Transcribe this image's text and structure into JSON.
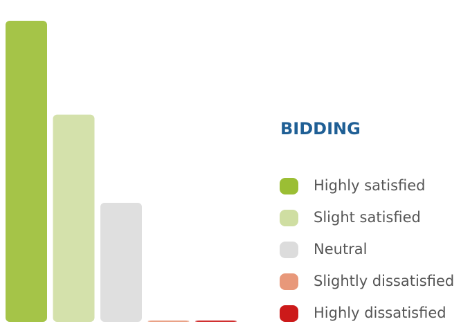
{
  "chart_data": {
    "type": "bar",
    "title": "BIDDING",
    "categories": [
      "Highly satisfied",
      "Slight satisfied",
      "Neutral",
      "Slightly dissatisfied",
      "Highly dissatisfied"
    ],
    "values": [
      47.8,
      32.9,
      18.9,
      0.2,
      0.2
    ],
    "colors": [
      "#9bbe34",
      "#cfdea2",
      "#dcdcdc",
      "#e8987a",
      "#cc1a1a"
    ],
    "ylim": [
      0,
      50
    ]
  }
}
